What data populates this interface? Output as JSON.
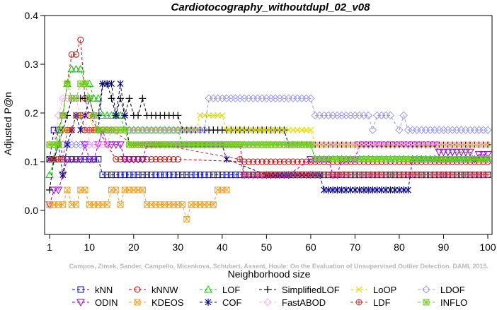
{
  "chart_data": {
    "type": "line",
    "title": "Cardiotocography_withoutdupl_02_v08",
    "xlabel": "Neighborhood size",
    "ylabel": "Adjusted P@n",
    "xlim": [
      1,
      100
    ],
    "ylim": [
      -0.05,
      0.4
    ],
    "xticks": [
      1,
      10,
      20,
      30,
      40,
      50,
      60,
      70,
      80,
      90,
      100
    ],
    "yticks": [
      0.0,
      0.1,
      0.2,
      0.3,
      0.4
    ],
    "xtick_labels": [
      "1",
      "10",
      "20",
      "30",
      "40",
      "50",
      "60",
      "70",
      "80",
      "90",
      "100"
    ],
    "ytick_labels": [
      "0.0",
      "0.1",
      "0.2",
      "0.3",
      "0.4"
    ],
    "grid": false,
    "legend_position": "bottom",
    "watermark": "Campos, Zimek, Sander, Campello, Micenkova, Schubert, Assent, Houle: On the Evaluation of Unsupervised Outlier Detection. DAMI, 2015.",
    "series": [
      {
        "name": "kNN",
        "color": "#0000cc",
        "marker": "square",
        "dash": "4,3",
        "points": [
          [
            1,
            0.105
          ],
          [
            2,
            0.165
          ],
          [
            3,
            0.165
          ],
          [
            4,
            0.105
          ],
          [
            12,
            0.105
          ],
          [
            13,
            0.073
          ],
          [
            100,
            0.073
          ]
        ]
      },
      {
        "name": "kNNW",
        "color": "#cc0000",
        "marker": "circle",
        "dash": "4,3",
        "points": [
          [
            1,
            0.135
          ],
          [
            2,
            0.135
          ],
          [
            3,
            0.165
          ],
          [
            4,
            0.195
          ],
          [
            5,
            0.26
          ],
          [
            6,
            0.32
          ],
          [
            7,
            0.32
          ],
          [
            8,
            0.35
          ],
          [
            9,
            0.23
          ],
          [
            10,
            0.195
          ],
          [
            12,
            0.165
          ],
          [
            14,
            0.135
          ],
          [
            16,
            0.105
          ],
          [
            30,
            0.105
          ],
          [
            45,
            0.1
          ],
          [
            50,
            0.1
          ],
          [
            100,
            0.1
          ]
        ]
      },
      {
        "name": "LOF",
        "color": "#00cc00",
        "marker": "triangle",
        "dash": "4,3",
        "points": [
          [
            1,
            0.073
          ],
          [
            2,
            0.105
          ],
          [
            3,
            0.165
          ],
          [
            4,
            0.195
          ],
          [
            5,
            0.26
          ],
          [
            6,
            0.29
          ],
          [
            7,
            0.29
          ],
          [
            8,
            0.29
          ],
          [
            9,
            0.26
          ],
          [
            10,
            0.26
          ],
          [
            11,
            0.23
          ],
          [
            12,
            0.23
          ],
          [
            13,
            0.195
          ],
          [
            14,
            0.195
          ],
          [
            15,
            0.195
          ],
          [
            16,
            0.195
          ],
          [
            17,
            0.195
          ],
          [
            18,
            0.165
          ],
          [
            30,
            0.165
          ],
          [
            31,
            0.135
          ],
          [
            60,
            0.135
          ],
          [
            61,
            0.105
          ],
          [
            100,
            0.105
          ]
        ]
      },
      {
        "name": "SimplifiedLOF",
        "color": "#000000",
        "marker": "plus",
        "dash": "4,3",
        "points": [
          [
            1,
            0.042
          ],
          [
            2,
            0.105
          ],
          [
            3,
            0.135
          ],
          [
            4,
            0.165
          ],
          [
            5,
            0.195
          ],
          [
            6,
            0.23
          ],
          [
            7,
            0.23
          ],
          [
            8,
            0.23
          ],
          [
            9,
            0.23
          ],
          [
            10,
            0.23
          ],
          [
            11,
            0.195
          ],
          [
            12,
            0.195
          ],
          [
            13,
            0.26
          ],
          [
            14,
            0.26
          ],
          [
            15,
            0.23
          ],
          [
            16,
            0.195
          ],
          [
            17,
            0.23
          ],
          [
            18,
            0.195
          ],
          [
            19,
            0.23
          ],
          [
            20,
            0.195
          ],
          [
            21,
            0.195
          ],
          [
            22,
            0.23
          ],
          [
            23,
            0.195
          ],
          [
            30,
            0.195
          ],
          [
            31,
            0.165
          ],
          [
            54,
            0.165
          ],
          [
            55,
            0.135
          ],
          [
            100,
            0.135
          ]
        ]
      },
      {
        "name": "LoOP",
        "color": "#dddd00",
        "marker": "x",
        "dash": "4,3",
        "points": [
          [
            1,
            0.135
          ],
          [
            3,
            0.135
          ],
          [
            4,
            0.165
          ],
          [
            6,
            0.165
          ],
          [
            7,
            0.195
          ],
          [
            10,
            0.195
          ],
          [
            11,
            0.165
          ],
          [
            20,
            0.165
          ],
          [
            28,
            0.165
          ],
          [
            34,
            0.165
          ],
          [
            35,
            0.195
          ],
          [
            40,
            0.195
          ],
          [
            41,
            0.165
          ],
          [
            60,
            0.165
          ],
          [
            61,
            0.135
          ],
          [
            100,
            0.135
          ]
        ]
      },
      {
        "name": "LDOF",
        "color": "#9999ee",
        "marker": "diamond",
        "dash": "4,3",
        "points": [
          [
            1,
            0.135
          ],
          [
            12,
            0.135
          ],
          [
            13,
            0.165
          ],
          [
            30,
            0.165
          ],
          [
            31,
            0.165
          ],
          [
            36,
            0.165
          ],
          [
            37,
            0.23
          ],
          [
            60,
            0.23
          ],
          [
            61,
            0.195
          ],
          [
            72,
            0.195
          ],
          [
            73,
            0.195
          ],
          [
            74,
            0.165
          ],
          [
            75,
            0.195
          ],
          [
            78,
            0.195
          ],
          [
            80,
            0.165
          ],
          [
            81,
            0.195
          ],
          [
            82,
            0.165
          ],
          [
            100,
            0.165
          ]
        ]
      },
      {
        "name": "ODIN",
        "color": "#9900cc",
        "marker": "triangle-down",
        "dash": "4,3",
        "points": [
          [
            1,
            0.012
          ],
          [
            2,
            0.042
          ],
          [
            3,
            0.042
          ],
          [
            4,
            0.073
          ],
          [
            5,
            0.105
          ],
          [
            6,
            0.105
          ],
          [
            7,
            0.105
          ],
          [
            8,
            0.105
          ],
          [
            9,
            0.135
          ],
          [
            10,
            0.105
          ],
          [
            11,
            0.105
          ],
          [
            12,
            0.135
          ],
          [
            13,
            0.165
          ],
          [
            14,
            0.135
          ],
          [
            15,
            0.135
          ],
          [
            16,
            0.135
          ],
          [
            17,
            0.135
          ],
          [
            18,
            0.105
          ],
          [
            22,
            0.105
          ],
          [
            23,
            0.135
          ],
          [
            44,
            0.135
          ],
          [
            45,
            0.073
          ],
          [
            54,
            0.073
          ],
          [
            55,
            0.073
          ],
          [
            60,
            0.105
          ],
          [
            64,
            0.105
          ],
          [
            65,
            0.073
          ],
          [
            66,
            0.073
          ],
          [
            67,
            0.105
          ],
          [
            70,
            0.105
          ],
          [
            71,
            0.135
          ],
          [
            80,
            0.135
          ],
          [
            88,
            0.135
          ],
          [
            89,
            0.12
          ],
          [
            92,
            0.12
          ],
          [
            96,
            0.12
          ],
          [
            97,
            0.105
          ],
          [
            98,
            0.115
          ],
          [
            100,
            0.115
          ]
        ]
      },
      {
        "name": "KDEOS",
        "color": "#f0a020",
        "marker": "square-x",
        "dash": "4,3",
        "points": [
          [
            1,
            0.012
          ],
          [
            4,
            0.012
          ],
          [
            5,
            0.042
          ],
          [
            6,
            0.012
          ],
          [
            7,
            0.012
          ],
          [
            8,
            0.042
          ],
          [
            9,
            0.042
          ],
          [
            10,
            0.012
          ],
          [
            14,
            0.012
          ],
          [
            15,
            0.042
          ],
          [
            16,
            0.042
          ],
          [
            17,
            0.012
          ],
          [
            18,
            0.042
          ],
          [
            22,
            0.042
          ],
          [
            23,
            0.012
          ],
          [
            31,
            0.012
          ],
          [
            32,
            -0.018
          ],
          [
            33,
            0.012
          ],
          [
            38,
            0.012
          ],
          [
            39,
            0.042
          ],
          [
            40,
            0.042
          ],
          [
            41,
            0.042
          ]
        ]
      },
      {
        "name": "COF",
        "color": "#000088",
        "marker": "asterisk",
        "dash": "4,3",
        "points": [
          [
            1,
            0.105
          ],
          [
            2,
            0.105
          ],
          [
            3,
            0.135
          ],
          [
            4,
            0.073
          ],
          [
            5,
            0.135
          ],
          [
            6,
            0.165
          ],
          [
            7,
            0.195
          ],
          [
            8,
            0.165
          ],
          [
            9,
            0.195
          ],
          [
            10,
            0.23
          ],
          [
            11,
            0.195
          ],
          [
            12,
            0.165
          ],
          [
            13,
            0.26
          ],
          [
            14,
            0.26
          ],
          [
            15,
            0.26
          ],
          [
            16,
            0.195
          ],
          [
            17,
            0.26
          ],
          [
            18,
            0.195
          ],
          [
            19,
            0.135
          ],
          [
            20,
            0.135
          ],
          [
            40,
            0.135
          ],
          [
            41,
            0.105
          ],
          [
            50,
            0.073
          ],
          [
            62,
            0.073
          ],
          [
            63,
            0.042
          ],
          [
            82,
            0.042
          ],
          [
            83,
            0.105
          ],
          [
            100,
            0.105
          ]
        ]
      },
      {
        "name": "FastABOD",
        "color": "#ffaaee",
        "marker": "diamond",
        "dash": "4,3",
        "points": [
          [
            1,
            0.135
          ],
          [
            2,
            0.135
          ],
          [
            3,
            0.195
          ],
          [
            4,
            0.23
          ],
          [
            5,
            0.23
          ],
          [
            6,
            0.23
          ],
          [
            7,
            0.23
          ],
          [
            8,
            0.195
          ],
          [
            9,
            0.195
          ],
          [
            10,
            0.135
          ],
          [
            14,
            0.135
          ],
          [
            15,
            0.165
          ],
          [
            18,
            0.165
          ],
          [
            19,
            0.135
          ],
          [
            30,
            0.135
          ],
          [
            40,
            0.135
          ],
          [
            50,
            0.135
          ],
          [
            100,
            0.135
          ]
        ]
      },
      {
        "name": "LDF",
        "color": "#cc3333",
        "marker": "circle-plus",
        "dash": "4,3",
        "points": [
          [
            1,
            0.105
          ],
          [
            2,
            0.105
          ],
          [
            4,
            0.105
          ],
          [
            5,
            0.165
          ],
          [
            6,
            0.165
          ],
          [
            7,
            0.195
          ],
          [
            8,
            0.195
          ],
          [
            9,
            0.165
          ],
          [
            14,
            0.165
          ],
          [
            15,
            0.165
          ],
          [
            20,
            0.135
          ],
          [
            26,
            0.135
          ],
          [
            44,
            0.105
          ],
          [
            45,
            0.073
          ],
          [
            100,
            0.073
          ]
        ]
      },
      {
        "name": "INFLO",
        "color": "#77cc22",
        "marker": "square-star",
        "dash": "4,3",
        "points": [
          [
            1,
            0.135
          ],
          [
            2,
            0.135
          ],
          [
            3,
            0.135
          ],
          [
            4,
            0.195
          ],
          [
            5,
            0.26
          ],
          [
            6,
            0.23
          ],
          [
            7,
            0.23
          ],
          [
            8,
            0.26
          ],
          [
            9,
            0.26
          ],
          [
            10,
            0.23
          ],
          [
            11,
            0.195
          ],
          [
            12,
            0.165
          ],
          [
            18,
            0.165
          ],
          [
            19,
            0.135
          ],
          [
            30,
            0.135
          ],
          [
            44,
            0.135
          ],
          [
            60,
            0.135
          ],
          [
            61,
            0.105
          ],
          [
            100,
            0.105
          ]
        ]
      }
    ]
  }
}
